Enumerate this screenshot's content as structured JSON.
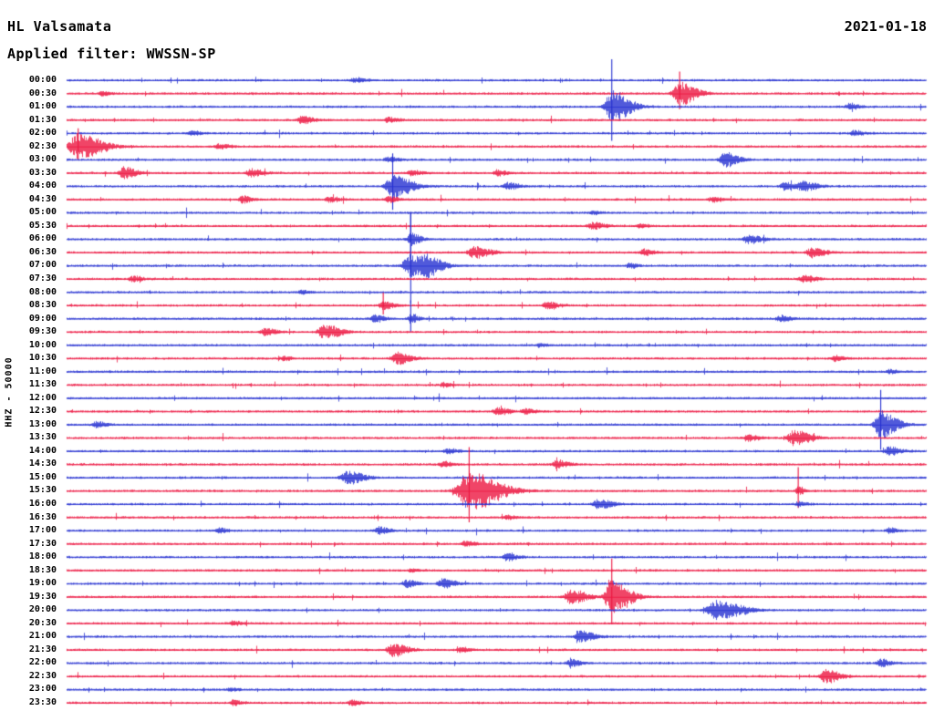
{
  "header": {
    "station": "HL Valsamata",
    "date": "2021-01-18",
    "filter_label": "Applied filter: WWSSN-SP"
  },
  "y_axis": {
    "label": "HHZ - 50000"
  },
  "chart_data": {
    "type": "line",
    "variant": "helicorder-seismogram",
    "title": "HL Valsamata",
    "date": "2021-01-18",
    "filter": "WWSSN-SP",
    "scale_label": "HHZ - 50000",
    "row_duration_minutes": 30,
    "start_time": "00:00",
    "end_time": "24:00",
    "legend_position": "none",
    "grid": false,
    "background": "#ffffff",
    "text_color": "#000000",
    "colors": {
      "blue": "#2530d0",
      "red": "#ec1540"
    },
    "event_format": "[x_fraction_of_row, amplitude_px, sigma_px, spike_px(optional)]",
    "rows": [
      {
        "label": "00:00",
        "color": "blue",
        "events": [
          [
            0.335,
            3,
            5
          ]
        ]
      },
      {
        "label": "00:30",
        "color": "red",
        "events": [
          [
            0.041,
            2.5,
            4
          ],
          [
            0.713,
            13,
            8,
            24
          ]
        ]
      },
      {
        "label": "01:00",
        "color": "blue",
        "events": [
          [
            0.634,
            18,
            9,
            52
          ],
          [
            0.91,
            3.5,
            5
          ]
        ]
      },
      {
        "label": "01:30",
        "color": "red",
        "events": [
          [
            0.273,
            4,
            6
          ],
          [
            0.374,
            3,
            5
          ]
        ]
      },
      {
        "label": "02:00",
        "color": "blue",
        "events": [
          [
            0.915,
            3,
            5
          ],
          [
            0.145,
            2.5,
            4
          ]
        ]
      },
      {
        "label": "02:30",
        "color": "red",
        "events": [
          [
            0.013,
            14,
            12,
            20
          ],
          [
            0.177,
            3,
            5
          ]
        ]
      },
      {
        "label": "03:00",
        "color": "blue",
        "events": [
          [
            0.766,
            8,
            7
          ],
          [
            0.374,
            3,
            5
          ]
        ]
      },
      {
        "label": "03:30",
        "color": "red",
        "events": [
          [
            0.066,
            7,
            6
          ],
          [
            0.214,
            4.5,
            6
          ],
          [
            0.4,
            3,
            5
          ],
          [
            0.501,
            3.5,
            5
          ]
        ]
      },
      {
        "label": "04:00",
        "color": "blue",
        "events": [
          [
            0.379,
            13,
            9,
            36
          ],
          [
            0.512,
            4,
            6
          ],
          [
            0.835,
            4,
            6
          ],
          [
            0.857,
            5,
            7
          ]
        ]
      },
      {
        "label": "04:30",
        "color": "red",
        "events": [
          [
            0.204,
            4,
            5
          ],
          [
            0.305,
            3,
            5
          ],
          [
            0.374,
            3.5,
            5
          ],
          [
            0.75,
            3,
            5
          ]
        ]
      },
      {
        "label": "05:00",
        "color": "blue",
        "events": [
          [
            0.612,
            2.2,
            4
          ]
        ]
      },
      {
        "label": "05:30",
        "color": "red",
        "events": [
          [
            0.612,
            4,
            6
          ],
          [
            0.666,
            2.5,
            4
          ]
        ]
      },
      {
        "label": "06:00",
        "color": "blue",
        "events": [
          [
            0.4,
            7,
            5,
            30
          ],
          [
            0.793,
            4.5,
            7
          ]
        ]
      },
      {
        "label": "06:30",
        "color": "red",
        "events": [
          [
            0.474,
            6.5,
            8
          ],
          [
            0.671,
            3.5,
            5
          ],
          [
            0.867,
            5,
            7
          ]
        ]
      },
      {
        "label": "07:00",
        "color": "blue",
        "events": [
          [
            0.4,
            12,
            10,
            58
          ],
          [
            0.421,
            7,
            7
          ],
          [
            0.655,
            3,
            4
          ]
        ]
      },
      {
        "label": "07:30",
        "color": "red",
        "events": [
          [
            0.076,
            3,
            5
          ],
          [
            0.857,
            4,
            6
          ]
        ]
      },
      {
        "label": "08:00",
        "color": "blue",
        "events": [
          [
            0.273,
            2,
            4
          ]
        ]
      },
      {
        "label": "08:30",
        "color": "red",
        "events": [
          [
            0.368,
            5.5,
            5,
            14
          ],
          [
            0.559,
            4,
            6
          ]
        ]
      },
      {
        "label": "09:00",
        "color": "blue",
        "events": [
          [
            0.358,
            4,
            5
          ],
          [
            0.4,
            5,
            4,
            20
          ],
          [
            0.83,
            3.5,
            5
          ]
        ]
      },
      {
        "label": "09:30",
        "color": "red",
        "events": [
          [
            0.23,
            4.5,
            6
          ],
          [
            0.299,
            8,
            8
          ]
        ]
      },
      {
        "label": "10:00",
        "color": "blue",
        "events": [
          [
            0.55,
            1.8,
            4
          ]
        ]
      },
      {
        "label": "10:30",
        "color": "red",
        "events": [
          [
            0.252,
            2.5,
            4
          ],
          [
            0.384,
            6.5,
            7
          ],
          [
            0.894,
            3,
            5
          ]
        ]
      },
      {
        "label": "11:00",
        "color": "blue",
        "events": [
          [
            0.957,
            2.5,
            4
          ]
        ]
      },
      {
        "label": "11:30",
        "color": "red",
        "events": [
          [
            0.437,
            2.5,
            4
          ]
        ]
      },
      {
        "label": "12:00",
        "color": "blue",
        "events": []
      },
      {
        "label": "12:30",
        "color": "red",
        "events": [
          [
            0.501,
            4,
            6
          ],
          [
            0.533,
            3,
            5
          ]
        ]
      },
      {
        "label": "13:00",
        "color": "blue",
        "events": [
          [
            0.034,
            3.5,
            5
          ],
          [
            0.947,
            15,
            8,
            38
          ]
        ]
      },
      {
        "label": "13:30",
        "color": "red",
        "events": [
          [
            0.793,
            3.5,
            5
          ],
          [
            0.846,
            9,
            8
          ]
        ]
      },
      {
        "label": "14:00",
        "color": "blue",
        "events": [
          [
            0.443,
            3,
            5
          ],
          [
            0.957,
            5,
            6
          ]
        ]
      },
      {
        "label": "14:30",
        "color": "red",
        "events": [
          [
            0.437,
            3,
            5
          ],
          [
            0.57,
            4.5,
            6
          ]
        ]
      },
      {
        "label": "15:00",
        "color": "blue",
        "events": [
          [
            0.326,
            7.5,
            8
          ]
        ]
      },
      {
        "label": "15:30",
        "color": "red",
        "events": [
          [
            0.468,
            22,
            15,
            48
          ],
          [
            0.851,
            5,
            3,
            26
          ]
        ]
      },
      {
        "label": "16:00",
        "color": "blue",
        "events": [
          [
            0.618,
            6,
            7
          ],
          [
            0.851,
            3,
            4
          ]
        ]
      },
      {
        "label": "16:30",
        "color": "red",
        "events": [
          [
            0.512,
            2.2,
            4
          ]
        ]
      },
      {
        "label": "17:00",
        "color": "blue",
        "events": [
          [
            0.177,
            3,
            4
          ],
          [
            0.363,
            4,
            5
          ],
          [
            0.957,
            3.5,
            4
          ]
        ]
      },
      {
        "label": "17:30",
        "color": "red",
        "events": [
          [
            0.464,
            3,
            5
          ]
        ]
      },
      {
        "label": "18:00",
        "color": "blue",
        "events": [
          [
            0.512,
            4,
            5
          ]
        ]
      },
      {
        "label": "18:30",
        "color": "red",
        "events": [
          [
            0.4,
            1.8,
            4
          ]
        ]
      },
      {
        "label": "19:00",
        "color": "blue",
        "events": [
          [
            0.395,
            4.5,
            5
          ],
          [
            0.437,
            5.5,
            6
          ]
        ]
      },
      {
        "label": "19:30",
        "color": "red",
        "events": [
          [
            0.586,
            8,
            8
          ],
          [
            0.634,
            19,
            9,
            42
          ]
        ]
      },
      {
        "label": "20:00",
        "color": "blue",
        "events": [
          [
            0.756,
            10,
            13
          ]
        ]
      },
      {
        "label": "20:30",
        "color": "red",
        "events": [
          [
            0.193,
            3,
            4
          ]
        ]
      },
      {
        "label": "21:00",
        "color": "blue",
        "events": [
          [
            0.597,
            6.5,
            7
          ]
        ]
      },
      {
        "label": "21:30",
        "color": "red",
        "events": [
          [
            0.379,
            7.5,
            7
          ],
          [
            0.459,
            3,
            4
          ]
        ]
      },
      {
        "label": "22:00",
        "color": "blue",
        "events": [
          [
            0.586,
            4,
            5
          ],
          [
            0.947,
            4.5,
            5
          ]
        ]
      },
      {
        "label": "22:30",
        "color": "red",
        "events": [
          [
            0.883,
            7.5,
            7
          ]
        ]
      },
      {
        "label": "23:00",
        "color": "blue",
        "events": [
          [
            0.19,
            2,
            4
          ]
        ]
      },
      {
        "label": "23:30",
        "color": "red",
        "events": [
          [
            0.193,
            3,
            4
          ],
          [
            0.331,
            3,
            5
          ]
        ]
      }
    ]
  }
}
